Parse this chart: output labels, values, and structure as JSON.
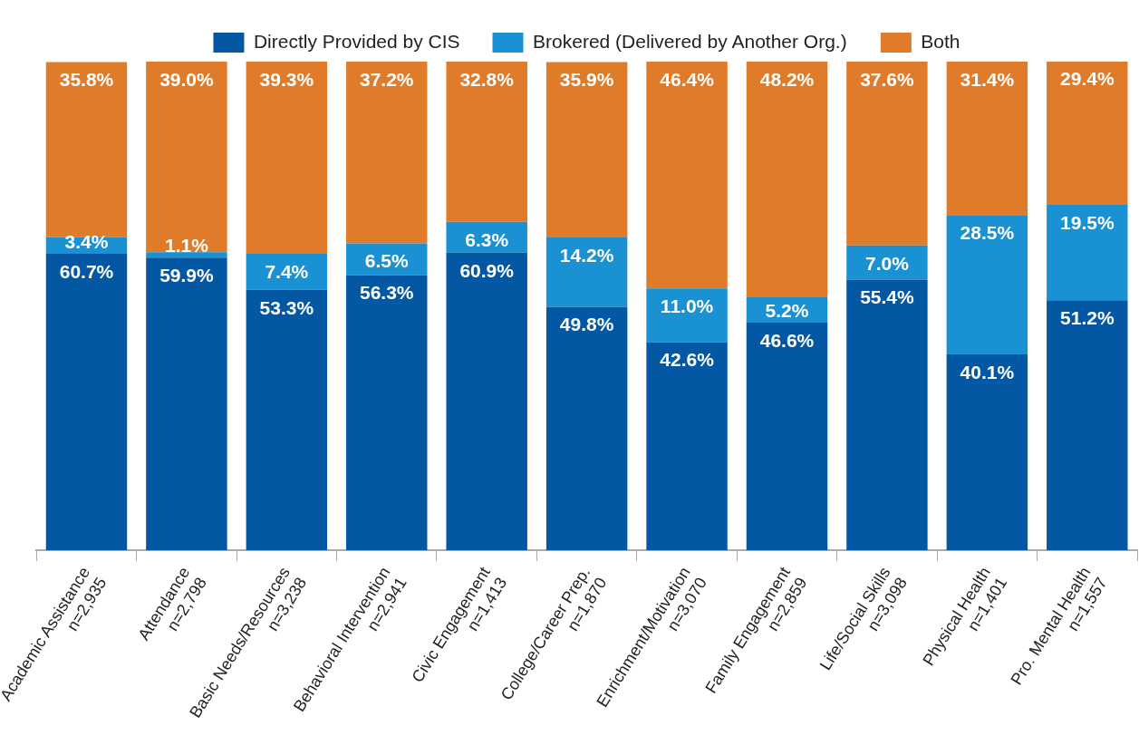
{
  "chart_data": {
    "type": "bar",
    "stacked": true,
    "legend": "top",
    "tick_labels": "x",
    "grid": false,
    "ylim": [
      0,
      100
    ],
    "categories": [
      "Academic Assistance\nn=2,935",
      "Attendance\nn=2,798",
      "Basic Needs/Resources\nn=3,238",
      "Behavioral Intervention\nn=2,941",
      "Civic Engagement\nn=1,413",
      "College/Career Prep.\nn=1,870",
      "Enrichment/Motivation\nn=3,070",
      "Family Engagement\nn=2,859",
      "Life/Social Skills\nn=3,098",
      "Physical Health\nn=1,401",
      "Pro. Mental Health\nn=1,557"
    ],
    "series": [
      {
        "name": "Directly Provided by CIS",
        "color": "#0458a3",
        "values": [
          60.7,
          59.9,
          53.3,
          56.3,
          60.9,
          49.8,
          42.6,
          46.6,
          55.4,
          40.1,
          51.2
        ],
        "value_labels": [
          "60.7%",
          "59.9%",
          "53.3%",
          "56.3%",
          "60.9%",
          "49.8%",
          "42.6%",
          "46.6%",
          "55.4%",
          "40.1%",
          "51.2%"
        ]
      },
      {
        "name": "Brokered (Delivered by Another Org.)",
        "color": "#1991d3",
        "values": [
          3.4,
          1.1,
          7.4,
          6.5,
          6.3,
          14.2,
          11.0,
          5.2,
          7.0,
          28.5,
          19.5
        ],
        "value_labels": [
          "3.4%",
          "1.1%",
          "7.4%",
          "6.5%",
          "6.3%",
          "14.2%",
          "11.0%",
          "5.2%",
          "7.0%",
          "28.5%",
          "19.5%"
        ]
      },
      {
        "name": "Both",
        "color": "#e07b2a",
        "values": [
          35.8,
          39.0,
          39.3,
          37.2,
          32.8,
          35.9,
          46.4,
          48.2,
          37.6,
          31.4,
          29.4
        ],
        "value_labels": [
          "35.8%",
          "39.0%",
          "39.3%",
          "37.2%",
          "32.8%",
          "35.9%",
          "46.4%",
          "48.2%",
          "37.6%",
          "31.4%",
          "29.4%"
        ]
      }
    ]
  }
}
